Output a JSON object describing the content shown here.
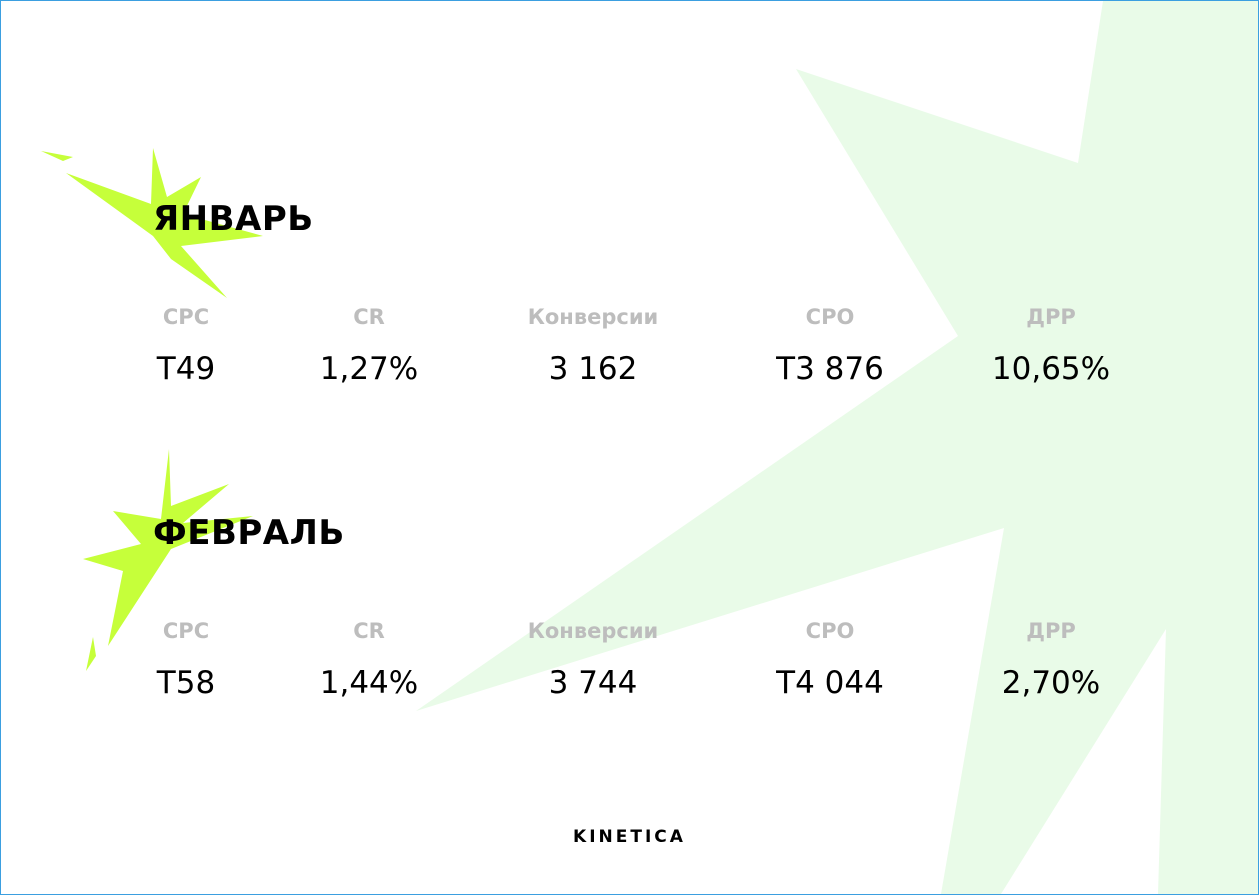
{
  "sections": [
    {
      "title": "ЯНВАРЬ",
      "metrics": [
        {
          "label": "CPC",
          "value": "T49"
        },
        {
          "label": "CR",
          "value": "1,27%"
        },
        {
          "label": "Конверсии",
          "value": "3 162"
        },
        {
          "label": "CPO",
          "value": "T3 876"
        },
        {
          "label": "ДРР",
          "value": "10,65%"
        }
      ]
    },
    {
      "title": "ФЕВРАЛЬ",
      "metrics": [
        {
          "label": "CPC",
          "value": "T58"
        },
        {
          "label": "CR",
          "value": "1,44%"
        },
        {
          "label": "Конверсии",
          "value": "3 744"
        },
        {
          "label": "CPO",
          "value": "T4 044"
        },
        {
          "label": "ДРР",
          "value": "2,70%"
        }
      ]
    }
  ],
  "footer": {
    "logo": "KINETICA"
  }
}
